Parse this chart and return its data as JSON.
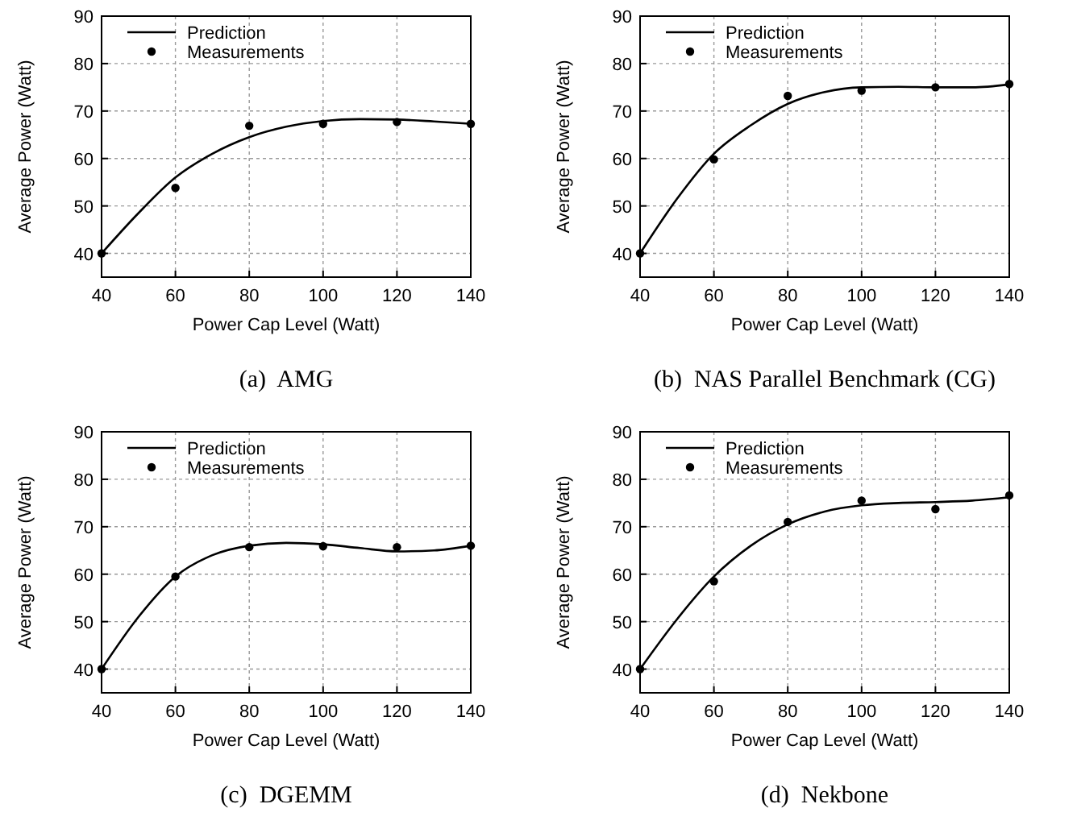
{
  "chart_data": [
    {
      "type": "line",
      "title": "(a)  AMG",
      "xlabel": "Power Cap Level (Watt)",
      "ylabel": "Average Power (Watt)",
      "xlim": [
        40,
        140
      ],
      "ylim": [
        35,
        90
      ],
      "xticks": [
        40,
        60,
        80,
        100,
        120,
        140
      ],
      "yticks": [
        40,
        50,
        60,
        70,
        80,
        90
      ],
      "grid": true,
      "legend": "top left",
      "series": [
        {
          "name": "Prediction",
          "type": "line",
          "color": "#000000",
          "marker": "none",
          "line_style": "solid",
          "x": [
            40,
            50,
            60,
            70,
            80,
            90,
            100,
            110,
            120,
            130,
            140
          ],
          "values": [
            40,
            48.5,
            56,
            61,
            64.5,
            66.7,
            67.9,
            68.3,
            68.2,
            67.8,
            67.3
          ]
        },
        {
          "name": "Measurements",
          "type": "scatter",
          "color": "#000000",
          "marker": "circle",
          "x": [
            40,
            60,
            80,
            100,
            120,
            140
          ],
          "values": [
            40,
            53.8,
            66.9,
            67.3,
            67.7,
            67.3
          ]
        }
      ]
    },
    {
      "type": "line",
      "title": "(b)  NAS Parallel Benchmark (CG)",
      "xlabel": "Power Cap Level (Watt)",
      "ylabel": "Average Power (Watt)",
      "xlim": [
        40,
        140
      ],
      "ylim": [
        35,
        90
      ],
      "xticks": [
        40,
        60,
        80,
        100,
        120,
        140
      ],
      "yticks": [
        40,
        50,
        60,
        70,
        80,
        90
      ],
      "grid": true,
      "legend": "top left",
      "series": [
        {
          "name": "Prediction",
          "type": "line",
          "color": "#000000",
          "marker": "none",
          "line_style": "solid",
          "x": [
            40,
            50,
            60,
            70,
            80,
            90,
            100,
            110,
            120,
            130,
            140
          ],
          "values": [
            40,
            51.5,
            61,
            67,
            71.5,
            74,
            75,
            75.1,
            75,
            75,
            75.6
          ]
        },
        {
          "name": "Measurements",
          "type": "scatter",
          "color": "#000000",
          "marker": "circle",
          "x": [
            40,
            60,
            80,
            100,
            120,
            140
          ],
          "values": [
            40,
            59.8,
            73.2,
            74.3,
            75,
            75.7
          ]
        }
      ]
    },
    {
      "type": "line",
      "title": "(c)  DGEMM",
      "xlabel": "Power Cap Level (Watt)",
      "ylabel": "Average Power (Watt)",
      "xlim": [
        40,
        140
      ],
      "ylim": [
        35,
        90
      ],
      "xticks": [
        40,
        60,
        80,
        100,
        120,
        140
      ],
      "yticks": [
        40,
        50,
        60,
        70,
        80,
        90
      ],
      "grid": true,
      "legend": "top left",
      "series": [
        {
          "name": "Prediction",
          "type": "line",
          "color": "#000000",
          "marker": "none",
          "line_style": "solid",
          "x": [
            40,
            50,
            60,
            70,
            80,
            90,
            100,
            110,
            120,
            130,
            140
          ],
          "values": [
            40,
            51,
            59.5,
            64,
            66,
            66.6,
            66.3,
            65.5,
            64.8,
            65,
            66
          ]
        },
        {
          "name": "Measurements",
          "type": "scatter",
          "color": "#000000",
          "marker": "circle",
          "x": [
            40,
            60,
            80,
            100,
            120,
            140
          ],
          "values": [
            40,
            59.5,
            65.7,
            65.9,
            65.7,
            66
          ]
        }
      ]
    },
    {
      "type": "line",
      "title": "(d)  Nekbone",
      "xlabel": "Power Cap Level (Watt)",
      "ylabel": "Average Power (Watt)",
      "xlim": [
        40,
        140
      ],
      "ylim": [
        35,
        90
      ],
      "xticks": [
        40,
        60,
        80,
        100,
        120,
        140
      ],
      "yticks": [
        40,
        50,
        60,
        70,
        80,
        90
      ],
      "grid": true,
      "legend": "top left",
      "series": [
        {
          "name": "Prediction",
          "type": "line",
          "color": "#000000",
          "marker": "none",
          "line_style": "solid",
          "x": [
            40,
            50,
            60,
            70,
            80,
            90,
            100,
            110,
            120,
            130,
            140
          ],
          "values": [
            40,
            50.5,
            59.5,
            66,
            70.5,
            73.2,
            74.5,
            75,
            75.2,
            75.5,
            76.2
          ]
        },
        {
          "name": "Measurements",
          "type": "scatter",
          "color": "#000000",
          "marker": "circle",
          "x": [
            40,
            60,
            80,
            100,
            120,
            140
          ],
          "values": [
            40,
            58.5,
            71,
            75.5,
            73.7,
            76.6
          ]
        }
      ]
    }
  ]
}
